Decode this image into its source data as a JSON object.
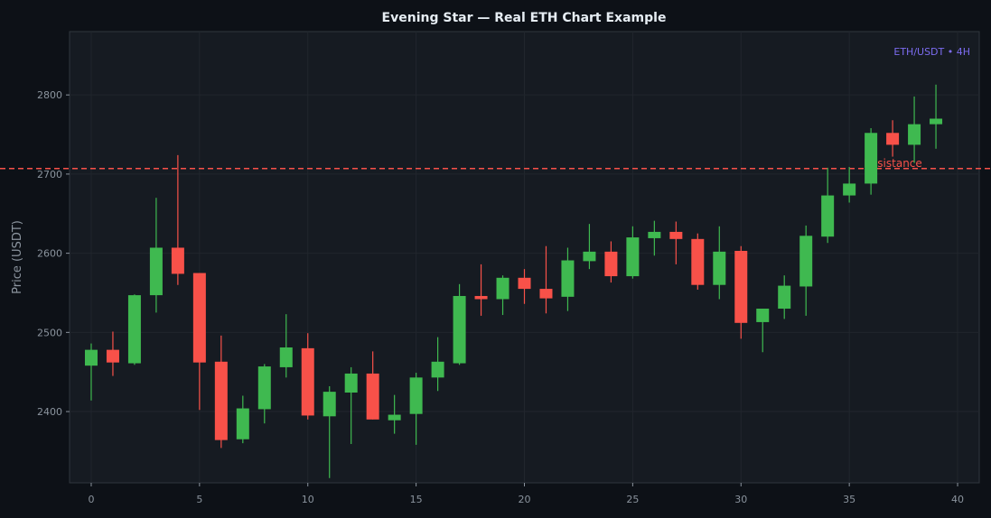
{
  "chart_data": {
    "type": "candlestick",
    "title": "Evening Star — Real ETH Chart Example",
    "xlabel": "",
    "ylabel": "Price (USDT)",
    "pair_label": "ETH/USDT • 4H",
    "xlim": [
      -1,
      41
    ],
    "ylim": [
      2310,
      2880
    ],
    "xticks": [
      0,
      5,
      10,
      15,
      20,
      25,
      30,
      35,
      40
    ],
    "yticks": [
      2400,
      2500,
      2600,
      2700,
      2800
    ],
    "grid": true,
    "colors": {
      "up": "#3fb950",
      "down": "#f85149",
      "resistance": "#f85149",
      "pair_label": "#7c6cf0"
    },
    "resistance": {
      "value": 2707,
      "label": "Resistance"
    },
    "candles": [
      {
        "x": 0,
        "open": 2458,
        "high": 2486,
        "low": 2414,
        "close": 2478
      },
      {
        "x": 1,
        "open": 2478,
        "high": 2501,
        "low": 2445,
        "close": 2462
      },
      {
        "x": 2,
        "open": 2461,
        "high": 2548,
        "low": 2459,
        "close": 2547
      },
      {
        "x": 3,
        "open": 2547,
        "high": 2670,
        "low": 2525,
        "close": 2607
      },
      {
        "x": 4,
        "open": 2607,
        "high": 2724,
        "low": 2560,
        "close": 2574
      },
      {
        "x": 5,
        "open": 2575,
        "high": 2575,
        "low": 2402,
        "close": 2462
      },
      {
        "x": 6,
        "open": 2463,
        "high": 2496,
        "low": 2354,
        "close": 2364
      },
      {
        "x": 7,
        "open": 2365,
        "high": 2420,
        "low": 2360,
        "close": 2404
      },
      {
        "x": 8,
        "open": 2403,
        "high": 2460,
        "low": 2385,
        "close": 2457
      },
      {
        "x": 9,
        "open": 2456,
        "high": 2523,
        "low": 2443,
        "close": 2481
      },
      {
        "x": 10,
        "open": 2480,
        "high": 2499,
        "low": 2390,
        "close": 2395
      },
      {
        "x": 11,
        "open": 2394,
        "high": 2432,
        "low": 2316,
        "close": 2425
      },
      {
        "x": 12,
        "open": 2424,
        "high": 2456,
        "low": 2359,
        "close": 2448
      },
      {
        "x": 13,
        "open": 2448,
        "high": 2476,
        "low": 2390,
        "close": 2390
      },
      {
        "x": 14,
        "open": 2389,
        "high": 2421,
        "low": 2372,
        "close": 2396
      },
      {
        "x": 15,
        "open": 2397,
        "high": 2449,
        "low": 2358,
        "close": 2443
      },
      {
        "x": 16,
        "open": 2443,
        "high": 2494,
        "low": 2426,
        "close": 2463
      },
      {
        "x": 17,
        "open": 2461,
        "high": 2561,
        "low": 2459,
        "close": 2546
      },
      {
        "x": 18,
        "open": 2546,
        "high": 2586,
        "low": 2521,
        "close": 2542
      },
      {
        "x": 19,
        "open": 2542,
        "high": 2572,
        "low": 2522,
        "close": 2569
      },
      {
        "x": 20,
        "open": 2569,
        "high": 2580,
        "low": 2536,
        "close": 2555
      },
      {
        "x": 21,
        "open": 2555,
        "high": 2609,
        "low": 2524,
        "close": 2543
      },
      {
        "x": 22,
        "open": 2545,
        "high": 2607,
        "low": 2527,
        "close": 2591
      },
      {
        "x": 23,
        "open": 2590,
        "high": 2637,
        "low": 2580,
        "close": 2602
      },
      {
        "x": 24,
        "open": 2602,
        "high": 2615,
        "low": 2563,
        "close": 2571
      },
      {
        "x": 25,
        "open": 2571,
        "high": 2634,
        "low": 2568,
        "close": 2620
      },
      {
        "x": 26,
        "open": 2619,
        "high": 2641,
        "low": 2597,
        "close": 2627
      },
      {
        "x": 27,
        "open": 2627,
        "high": 2640,
        "low": 2586,
        "close": 2618
      },
      {
        "x": 28,
        "open": 2618,
        "high": 2625,
        "low": 2554,
        "close": 2560
      },
      {
        "x": 29,
        "open": 2560,
        "high": 2634,
        "low": 2542,
        "close": 2602
      },
      {
        "x": 30,
        "open": 2603,
        "high": 2609,
        "low": 2492,
        "close": 2512
      },
      {
        "x": 31,
        "open": 2513,
        "high": 2530,
        "low": 2475,
        "close": 2530
      },
      {
        "x": 32,
        "open": 2530,
        "high": 2572,
        "low": 2517,
        "close": 2559
      },
      {
        "x": 33,
        "open": 2558,
        "high": 2635,
        "low": 2521,
        "close": 2622
      },
      {
        "x": 34,
        "open": 2621,
        "high": 2708,
        "low": 2613,
        "close": 2673
      },
      {
        "x": 35,
        "open": 2673,
        "high": 2709,
        "low": 2664,
        "close": 2688
      },
      {
        "x": 36,
        "open": 2688,
        "high": 2758,
        "low": 2674,
        "close": 2752
      },
      {
        "x": 37,
        "open": 2752,
        "high": 2768,
        "low": 2722,
        "close": 2737
      },
      {
        "x": 38,
        "open": 2737,
        "high": 2798,
        "low": 2714,
        "close": 2763
      },
      {
        "x": 39,
        "open": 2763,
        "high": 2813,
        "low": 2732,
        "close": 2770
      }
    ]
  }
}
